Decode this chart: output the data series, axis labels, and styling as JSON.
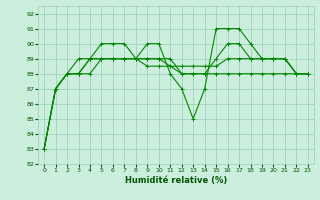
{
  "xlabel": "Humidité relative (%)",
  "bg_color": "#cceedd",
  "grid_color": "#99ccbb",
  "line_color": "#008800",
  "xlim": [
    -0.5,
    23.5
  ],
  "ylim": [
    82,
    92.5
  ],
  "yticks": [
    82,
    83,
    84,
    85,
    86,
    87,
    88,
    89,
    90,
    91,
    92
  ],
  "xticks": [
    0,
    1,
    2,
    3,
    4,
    5,
    6,
    7,
    8,
    9,
    10,
    11,
    12,
    13,
    14,
    15,
    16,
    17,
    18,
    19,
    20,
    21,
    22,
    23
  ],
  "series": [
    [
      83,
      87,
      88,
      89,
      89,
      90,
      90,
      90,
      89,
      90,
      90,
      88,
      87,
      85,
      87,
      91,
      91,
      91,
      90,
      89,
      89,
      89,
      88,
      88
    ],
    [
      83,
      87,
      88,
      88,
      89,
      89,
      89,
      89,
      89,
      89,
      89,
      89,
      88,
      88,
      88,
      89,
      90,
      90,
      89,
      89,
      89,
      89,
      88,
      88
    ],
    [
      83,
      87,
      88,
      88,
      89,
      89,
      89,
      89,
      89,
      89,
      89,
      88.5,
      88.5,
      88.5,
      88.5,
      88.5,
      89,
      89,
      89,
      89,
      89,
      89,
      88,
      88
    ],
    [
      83,
      87,
      88,
      88,
      88,
      89,
      89,
      89,
      89,
      88.5,
      88.5,
      88.5,
      88,
      88,
      88,
      88,
      88,
      88,
      88,
      88,
      88,
      88,
      88,
      88
    ]
  ]
}
